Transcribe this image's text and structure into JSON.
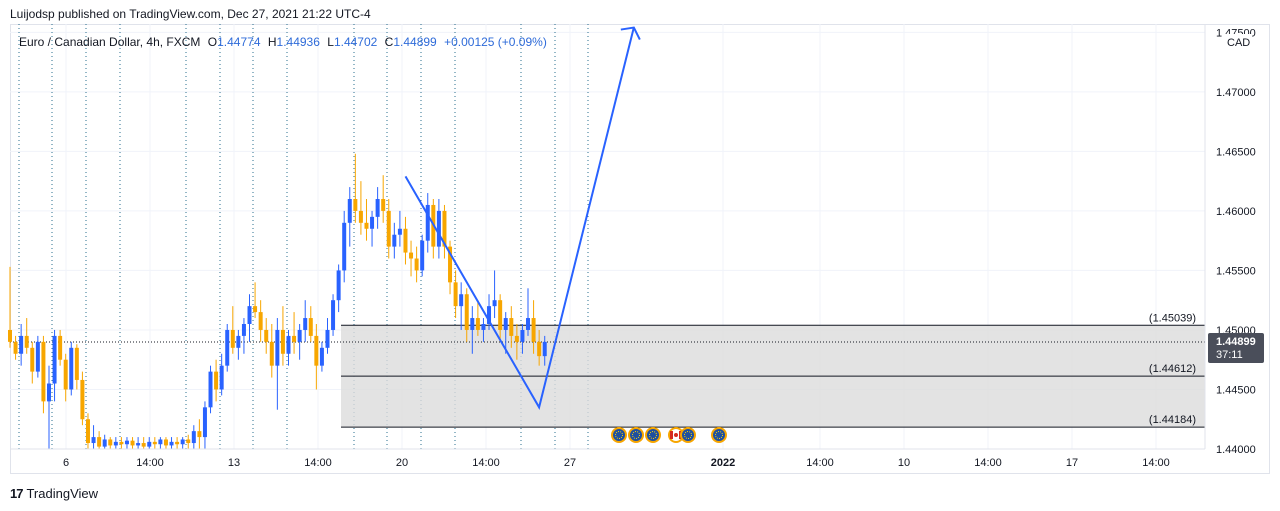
{
  "caption": "Luijodsp published on TradingView.com, Dec 27, 2021 21:22 UTC-4",
  "legend": {
    "symbol": "Euro / Canadian Dollar, 4h, FXCM",
    "o_label": "O",
    "o": "1.44774",
    "h_label": "H",
    "h": "1.44936",
    "l_label": "L",
    "l": "1.44702",
    "c_label": "C",
    "c": "1.44899",
    "change": "+0.00125 (+0.09%)"
  },
  "currency": "CAD",
  "footer": {
    "logo_mark": "17",
    "logo_text": "TradingView"
  },
  "colors": {
    "up": "#2962ff",
    "down": "#f7a600",
    "line": "#2962ff",
    "zone": "#dcdcdc"
  },
  "chart_data": {
    "type": "candlestick",
    "y_ticks": [
      "1.47500",
      "1.47000",
      "1.46500",
      "1.46000",
      "1.45500",
      "1.45000",
      "1.44500",
      "1.44000"
    ],
    "y_tick_values": [
      1.475,
      1.47,
      1.465,
      1.46,
      1.455,
      1.45,
      1.445,
      1.44
    ],
    "ylim": [
      1.44,
      1.4757
    ],
    "x_ticks": [
      "6",
      "14:00",
      "13",
      "14:00",
      "20",
      "14:00",
      "27",
      "2022",
      "14:00",
      "10",
      "14:00",
      "17",
      "14:00"
    ],
    "last_price": "1.44899",
    "countdown": "37:11",
    "zone_levels": [
      {
        "label": "(1.45039)",
        "value": 1.45039
      },
      {
        "label": "(1.44612)",
        "value": 1.44612
      },
      {
        "label": "(1.44184)",
        "value": 1.44184
      }
    ],
    "projection_path": [
      {
        "bar": 71,
        "price": 1.4629
      },
      {
        "bar": 95,
        "price": 1.4435
      },
      {
        "bar": 112,
        "price": 1.4754
      }
    ],
    "events": [
      "EU",
      "EU",
      "EU",
      "CA",
      "EU",
      "EU"
    ],
    "candles": [
      [
        1.45,
        1.4553,
        1.4485,
        1.449
      ],
      [
        1.449,
        1.4495,
        1.4475,
        1.448
      ],
      [
        1.448,
        1.4505,
        1.447,
        1.4495
      ],
      [
        1.4495,
        1.451,
        1.448,
        1.4485
      ],
      [
        1.4485,
        1.449,
        1.4455,
        1.4465
      ],
      [
        1.4465,
        1.4495,
        1.446,
        1.449
      ],
      [
        1.449,
        1.4495,
        1.443,
        1.444
      ],
      [
        1.444,
        1.447,
        1.44,
        1.4455
      ],
      [
        1.4455,
        1.45,
        1.444,
        1.4495
      ],
      [
        1.4495,
        1.45,
        1.447,
        1.4475
      ],
      [
        1.4475,
        1.448,
        1.444,
        1.445
      ],
      [
        1.445,
        1.449,
        1.4445,
        1.4485
      ],
      [
        1.4485,
        1.4488,
        1.445,
        1.4458
      ],
      [
        1.4458,
        1.4465,
        1.442,
        1.4425
      ],
      [
        1.4425,
        1.443,
        1.44,
        1.4405
      ],
      [
        1.4405,
        1.442,
        1.44,
        1.441
      ],
      [
        1.441,
        1.4415,
        1.44,
        1.4402
      ],
      [
        1.4402,
        1.4412,
        1.44,
        1.4408
      ],
      [
        1.4408,
        1.441,
        1.44,
        1.4403
      ],
      [
        1.4403,
        1.441,
        1.44,
        1.4406
      ],
      [
        1.4406,
        1.441,
        1.44,
        1.4404
      ],
      [
        1.4404,
        1.441,
        1.44,
        1.4407
      ],
      [
        1.4407,
        1.441,
        1.44,
        1.4403
      ],
      [
        1.4403,
        1.441,
        1.44,
        1.4405
      ],
      [
        1.4405,
        1.441,
        1.44,
        1.4402
      ],
      [
        1.4402,
        1.441,
        1.44,
        1.4406
      ],
      [
        1.4406,
        1.441,
        1.44,
        1.4404
      ],
      [
        1.4404,
        1.441,
        1.44,
        1.4408
      ],
      [
        1.4408,
        1.441,
        1.44,
        1.4403
      ],
      [
        1.4403,
        1.441,
        1.44,
        1.4406
      ],
      [
        1.4406,
        1.441,
        1.44,
        1.4404
      ],
      [
        1.4404,
        1.441,
        1.44,
        1.4408
      ],
      [
        1.4408,
        1.4412,
        1.44,
        1.4405
      ],
      [
        1.4405,
        1.442,
        1.44,
        1.4415
      ],
      [
        1.4415,
        1.4425,
        1.44,
        1.441
      ],
      [
        1.441,
        1.444,
        1.44,
        1.4435
      ],
      [
        1.4435,
        1.447,
        1.443,
        1.4465
      ],
      [
        1.4465,
        1.4475,
        1.444,
        1.445
      ],
      [
        1.445,
        1.448,
        1.4445,
        1.447
      ],
      [
        1.447,
        1.4505,
        1.4465,
        1.45
      ],
      [
        1.45,
        1.452,
        1.448,
        1.4485
      ],
      [
        1.4485,
        1.45,
        1.4475,
        1.4495
      ],
      [
        1.4495,
        1.451,
        1.448,
        1.4505
      ],
      [
        1.4505,
        1.453,
        1.449,
        1.452
      ],
      [
        1.452,
        1.454,
        1.451,
        1.4515
      ],
      [
        1.4515,
        1.4525,
        1.449,
        1.45
      ],
      [
        1.45,
        1.451,
        1.448,
        1.449
      ],
      [
        1.449,
        1.4505,
        1.446,
        1.447
      ],
      [
        1.447,
        1.451,
        1.4433,
        1.45
      ],
      [
        1.45,
        1.452,
        1.447,
        1.448
      ],
      [
        1.448,
        1.45,
        1.447,
        1.4495
      ],
      [
        1.4495,
        1.4515,
        1.448,
        1.449
      ],
      [
        1.449,
        1.4505,
        1.4475,
        1.45
      ],
      [
        1.45,
        1.4525,
        1.449,
        1.451
      ],
      [
        1.451,
        1.452,
        1.449,
        1.4495
      ],
      [
        1.4495,
        1.4505,
        1.445,
        1.447
      ],
      [
        1.447,
        1.449,
        1.4465,
        1.4485
      ],
      [
        1.4485,
        1.451,
        1.448,
        1.45
      ],
      [
        1.45,
        1.453,
        1.4495,
        1.4525
      ],
      [
        1.4525,
        1.4555,
        1.4515,
        1.455
      ],
      [
        1.455,
        1.46,
        1.454,
        1.459
      ],
      [
        1.459,
        1.462,
        1.457,
        1.461
      ],
      [
        1.461,
        1.4648,
        1.459,
        1.46
      ],
      [
        1.46,
        1.4625,
        1.458,
        1.459
      ],
      [
        1.459,
        1.461,
        1.4575,
        1.4585
      ],
      [
        1.4585,
        1.46,
        1.457,
        1.4595
      ],
      [
        1.4595,
        1.462,
        1.4585,
        1.461
      ],
      [
        1.461,
        1.463,
        1.459,
        1.46
      ],
      [
        1.46,
        1.461,
        1.456,
        1.457
      ],
      [
        1.457,
        1.459,
        1.456,
        1.458
      ],
      [
        1.458,
        1.46,
        1.457,
        1.4585
      ],
      [
        1.4585,
        1.4595,
        1.4555,
        1.4565
      ],
      [
        1.4565,
        1.4575,
        1.4545,
        1.456
      ],
      [
        1.456,
        1.457,
        1.454,
        1.455
      ],
      [
        1.455,
        1.458,
        1.4545,
        1.4575
      ],
      [
        1.4575,
        1.4615,
        1.4565,
        1.4605
      ],
      [
        1.4605,
        1.461,
        1.456,
        1.457
      ],
      [
        1.457,
        1.461,
        1.456,
        1.46
      ],
      [
        1.46,
        1.4605,
        1.456,
        1.457
      ],
      [
        1.457,
        1.4575,
        1.453,
        1.454
      ],
      [
        1.454,
        1.455,
        1.451,
        1.452
      ],
      [
        1.452,
        1.454,
        1.45,
        1.453
      ],
      [
        1.453,
        1.4535,
        1.449,
        1.45
      ],
      [
        1.45,
        1.452,
        1.448,
        1.451
      ],
      [
        1.451,
        1.4525,
        1.4495,
        1.45
      ],
      [
        1.45,
        1.451,
        1.449,
        1.4505
      ],
      [
        1.4505,
        1.453,
        1.45,
        1.452
      ],
      [
        1.452,
        1.455,
        1.451,
        1.4525
      ],
      [
        1.4525,
        1.453,
        1.449,
        1.45
      ],
      [
        1.45,
        1.4515,
        1.448,
        1.451
      ],
      [
        1.451,
        1.452,
        1.4485,
        1.4495
      ],
      [
        1.4495,
        1.4505,
        1.4475,
        1.449
      ],
      [
        1.449,
        1.4505,
        1.448,
        1.45
      ],
      [
        1.45,
        1.4535,
        1.4495,
        1.451
      ],
      [
        1.451,
        1.4525,
        1.448,
        1.449
      ],
      [
        1.449,
        1.45,
        1.447,
        1.4478
      ],
      [
        1.4478,
        1.4495,
        1.447,
        1.449
      ]
    ]
  }
}
